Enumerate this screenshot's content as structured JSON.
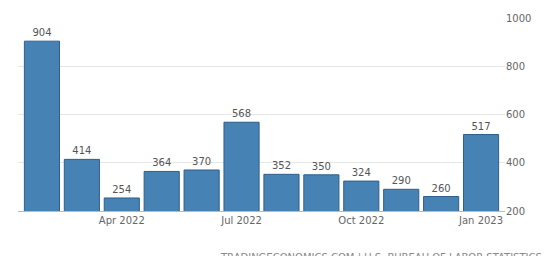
{
  "chart_data": {
    "type": "bar",
    "categories": [
      null,
      null,
      "Apr 2022",
      null,
      null,
      "Jul 2022",
      null,
      null,
      "Oct 2022",
      null,
      null,
      "Jan 2023"
    ],
    "values": [
      904,
      414,
      254,
      364,
      370,
      568,
      352,
      350,
      324,
      290,
      260,
      517
    ],
    "color": "#4682b4",
    "ylim": [
      200,
      1000
    ],
    "yticks": [
      200,
      400,
      600,
      800,
      1000
    ],
    "grid": true,
    "data_labels": true,
    "annotations": [
      "TRADINGECONOMICS.COM | U.S. BUREAU OF LABOR STATISTICS"
    ]
  }
}
